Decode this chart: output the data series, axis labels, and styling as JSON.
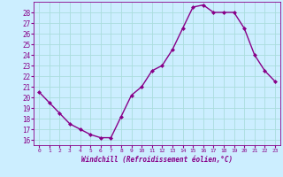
{
  "x": [
    0,
    1,
    2,
    3,
    4,
    5,
    6,
    7,
    8,
    9,
    10,
    11,
    12,
    13,
    14,
    15,
    16,
    17,
    18,
    19,
    20,
    21,
    22,
    23
  ],
  "y": [
    20.5,
    19.5,
    18.5,
    17.5,
    17.0,
    16.5,
    16.2,
    16.2,
    18.2,
    20.2,
    21.0,
    22.5,
    23.0,
    24.5,
    26.5,
    28.5,
    28.7,
    28.0,
    28.0,
    28.0,
    26.5,
    24.0,
    22.5,
    21.5
  ],
  "line_color": "#880088",
  "marker": "D",
  "marker_size": 2.0,
  "bg_color": "#cceeff",
  "grid_color": "#aadddd",
  "tick_color": "#880088",
  "label_color": "#880088",
  "xlabel": "Windchill (Refroidissement éolien,°C)",
  "ylim": [
    15.5,
    29.0
  ],
  "xlim": [
    -0.5,
    23.5
  ],
  "yticks": [
    16,
    17,
    18,
    19,
    20,
    21,
    22,
    23,
    24,
    25,
    26,
    27,
    28
  ],
  "xticks": [
    0,
    1,
    2,
    3,
    4,
    5,
    6,
    7,
    8,
    9,
    10,
    11,
    12,
    13,
    14,
    15,
    16,
    17,
    18,
    19,
    20,
    21,
    22,
    23
  ],
  "linewidth": 1.0
}
